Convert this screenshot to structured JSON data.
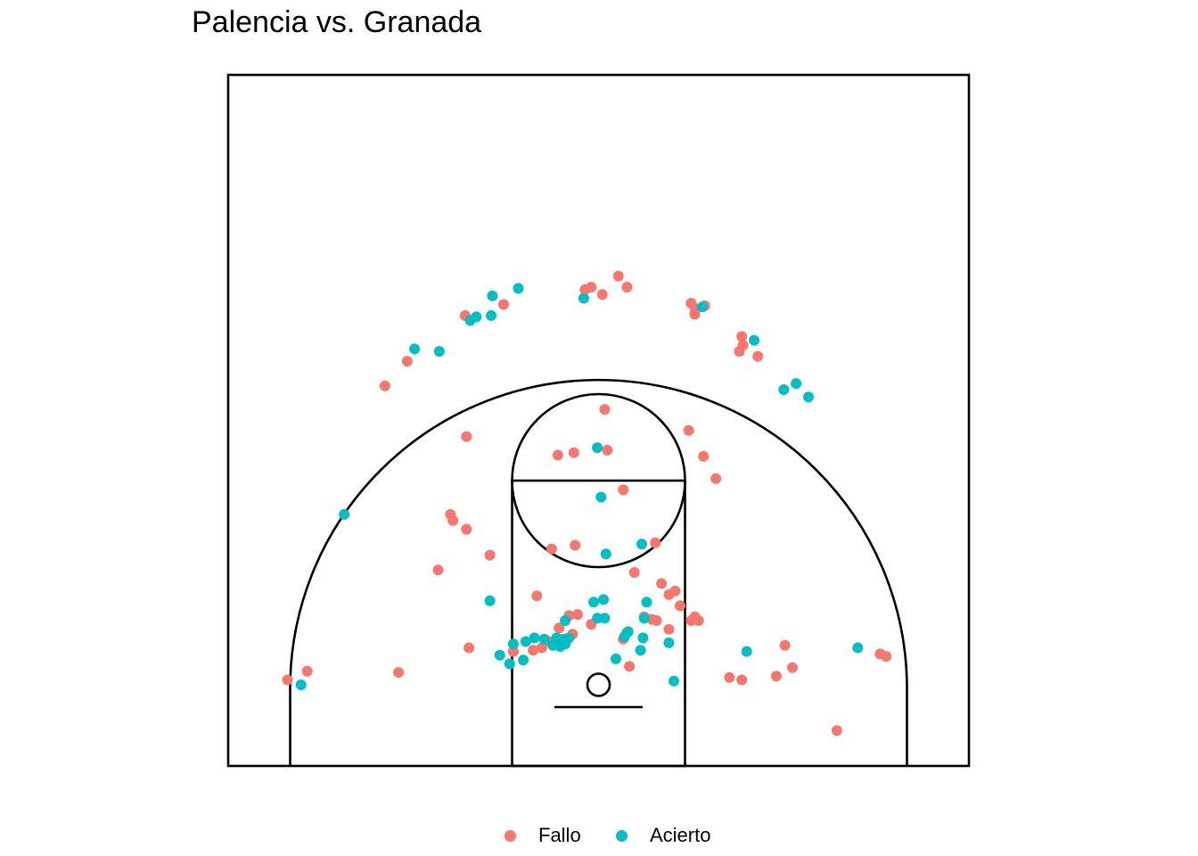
{
  "chart_data": {
    "type": "scatter",
    "title": "Palencia vs. Granada",
    "xlabel": "",
    "ylabel": "",
    "grid": false,
    "legend_position": "bottom",
    "colors": {
      "Fallo": "#F8766D",
      "Acierto": "#00BFC4"
    },
    "series": [
      {
        "name": "Fallo",
        "points": [
          [
            -25.2,
            0.4
          ],
          [
            -23.6,
            1.1
          ],
          [
            -16.2,
            1.0
          ],
          [
            -10.5,
            3.0
          ],
          [
            -6.9,
            2.7
          ],
          [
            -5.3,
            2.8
          ],
          [
            -4.6,
            3.0
          ],
          [
            -4.0,
            3.5
          ],
          [
            -3.2,
            4.6
          ],
          [
            -2.1,
            4.1
          ],
          [
            -1.7,
            5.7
          ],
          [
            -2.4,
            5.6
          ],
          [
            -0.6,
            4.9
          ],
          [
            2.0,
            3.7
          ],
          [
            2.5,
            1.5
          ],
          [
            3.7,
            5.5
          ],
          [
            4.3,
            5.3
          ],
          [
            4.7,
            5.2
          ],
          [
            5.7,
            4.5
          ],
          [
            5.7,
            7.3
          ],
          [
            6.6,
            6.4
          ],
          [
            7.5,
            5.2
          ],
          [
            7.8,
            5.5
          ],
          [
            8.1,
            5.2
          ],
          [
            11.6,
            0.4
          ],
          [
            14.4,
            0.7
          ],
          [
            15.1,
            3.2
          ],
          [
            15.7,
            1.4
          ],
          [
            19.3,
            -3.7
          ],
          [
            22.8,
            2.5
          ],
          [
            23.3,
            2.3
          ],
          [
            5.1,
            8.2
          ],
          [
            2.9,
            9.1
          ],
          [
            -3.8,
            11.0
          ],
          [
            -1.9,
            11.3
          ],
          [
            4.6,
            11.5
          ],
          [
            -5.0,
            7.2
          ],
          [
            -8.8,
            10.5
          ],
          [
            -13.0,
            9.3
          ],
          [
            -10.7,
            12.6
          ],
          [
            -10.7,
            20.1
          ],
          [
            -3.3,
            18.6
          ],
          [
            -2.0,
            18.8
          ],
          [
            0.7,
            19.0
          ],
          [
            2.0,
            15.8
          ],
          [
            0.5,
            22.3
          ],
          [
            7.3,
            20.6
          ],
          [
            8.5,
            18.5
          ],
          [
            9.5,
            16.7
          ],
          [
            10.6,
            0.6
          ],
          [
            6.2,
            7.6
          ],
          [
            -12.0,
            13.8
          ],
          [
            -11.8,
            13.3
          ],
          [
            -15.5,
            26.2
          ],
          [
            -10.8,
            29.9
          ],
          [
            -7.7,
            30.8
          ],
          [
            -17.3,
            24.2
          ],
          [
            -1.1,
            32.0
          ],
          [
            -0.6,
            32.2
          ],
          [
            0.3,
            31.6
          ],
          [
            1.6,
            33.1
          ],
          [
            2.3,
            32.2
          ],
          [
            7.5,
            30.9
          ],
          [
            7.8,
            30.5
          ],
          [
            8.6,
            30.7
          ],
          [
            7.8,
            30.0
          ],
          [
            11.6,
            28.2
          ],
          [
            11.7,
            27.5
          ],
          [
            11.4,
            27.0
          ],
          [
            12.9,
            26.6
          ]
        ]
      },
      {
        "name": "Acierto",
        "points": [
          [
            -24.1,
            0.0
          ],
          [
            -8.0,
            2.4
          ],
          [
            -6.9,
            3.3
          ],
          [
            -7.2,
            1.7
          ],
          [
            -6.1,
            2.0
          ],
          [
            -5.2,
            3.8
          ],
          [
            -4.4,
            3.7
          ],
          [
            -3.7,
            3.2
          ],
          [
            -3.4,
            3.8
          ],
          [
            -3.1,
            3.1
          ],
          [
            -2.8,
            3.7
          ],
          [
            -2.4,
            3.8
          ],
          [
            -3.0,
            3.4
          ],
          [
            -2.7,
            3.3
          ],
          [
            -2.7,
            5.2
          ],
          [
            -0.4,
            6.7
          ],
          [
            -0.1,
            5.4
          ],
          [
            0.4,
            6.9
          ],
          [
            0.5,
            5.4
          ],
          [
            1.4,
            2.1
          ],
          [
            2.1,
            3.9
          ],
          [
            2.3,
            4.2
          ],
          [
            2.4,
            4.3
          ],
          [
            3.4,
            2.8
          ],
          [
            3.6,
            3.8
          ],
          [
            3.7,
            5.4
          ],
          [
            3.9,
            6.7
          ],
          [
            5.7,
            3.4
          ],
          [
            6.1,
            0.3
          ],
          [
            12.0,
            2.7
          ],
          [
            21.0,
            3.0
          ],
          [
            -8.8,
            6.8
          ],
          [
            -5.9,
            3.5
          ],
          [
            0.6,
            10.6
          ],
          [
            3.5,
            11.4
          ],
          [
            0.2,
            15.2
          ],
          [
            -0.1,
            19.2
          ],
          [
            -20.6,
            13.8
          ],
          [
            -14.9,
            27.2
          ],
          [
            -12.9,
            27.0
          ],
          [
            -10.4,
            29.5
          ],
          [
            -9.9,
            29.8
          ],
          [
            -8.7,
            29.9
          ],
          [
            -8.6,
            31.5
          ],
          [
            -6.5,
            32.1
          ],
          [
            -1.2,
            31.3
          ],
          [
            8.4,
            30.6
          ],
          [
            12.6,
            27.9
          ],
          [
            15.0,
            23.9
          ],
          [
            16.0,
            24.4
          ],
          [
            17.0,
            23.3
          ]
        ]
      }
    ],
    "legend": [
      "Fallo",
      "Acierto"
    ]
  }
}
